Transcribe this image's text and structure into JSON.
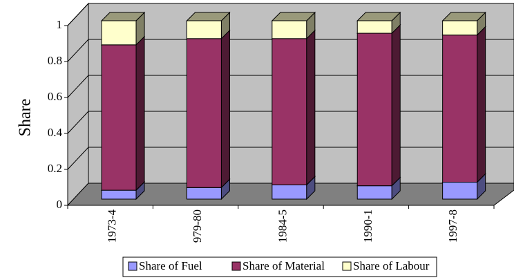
{
  "chart_data": {
    "type": "bar3d_stacked",
    "y_label": "Share",
    "categories": [
      "1973-4",
      "979-80",
      "1984-5",
      "1990-1",
      "1997-8"
    ],
    "series": [
      {
        "name": "Share of Fuel",
        "color": "#9999ff",
        "values": [
          0.05,
          0.065,
          0.08,
          0.075,
          0.095
        ]
      },
      {
        "name": "Share of Material",
        "color": "#993366",
        "values": [
          0.815,
          0.835,
          0.82,
          0.855,
          0.825
        ]
      },
      {
        "name": "Share of Labour",
        "color": "#ffffcc",
        "values": [
          0.135,
          0.1,
          0.1,
          0.07,
          0.08
        ]
      }
    ],
    "ylim": [
      0,
      1
    ],
    "yticks": [
      0,
      0.2,
      0.4,
      0.6,
      0.8,
      1
    ],
    "grid": true
  }
}
